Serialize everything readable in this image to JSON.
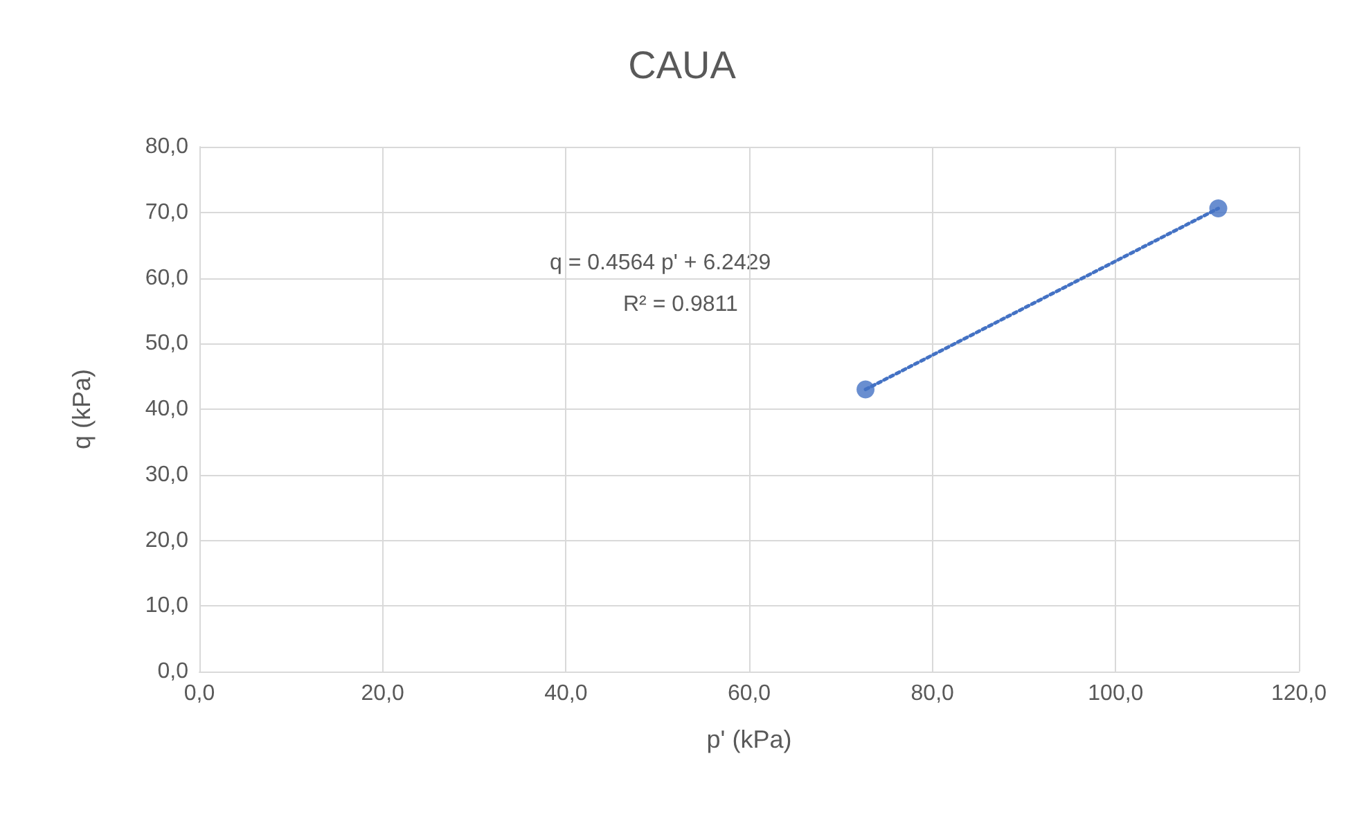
{
  "chart_data": {
    "type": "scatter",
    "title": "CAUA",
    "xlabel": "p' (kPa)",
    "ylabel": "q (kPa)",
    "annotations": [
      "q = 0.4564 p' + 6.2429",
      "R² = 0.9811"
    ],
    "x": [
      72.7,
      111.2
    ],
    "series": [
      {
        "color": "#4472c4",
        "values": [
          43.0,
          70.6
        ],
        "marker": "circle"
      },
      {
        "type": "line",
        "color": "#4472c4",
        "values": [
          43.0,
          70.6
        ],
        "marker": "none",
        "line_style": "dotted"
      }
    ],
    "xlim": [
      0,
      120
    ],
    "xticks": [
      {
        "value": 0,
        "label": "0,0"
      },
      {
        "value": 20,
        "label": "20,0"
      },
      {
        "value": 40,
        "label": "40,0"
      },
      {
        "value": 60,
        "label": "60,0"
      },
      {
        "value": 80,
        "label": "80,0"
      },
      {
        "value": 100,
        "label": "100,0"
      },
      {
        "value": 120,
        "label": "120,0"
      }
    ],
    "ylim": [
      0,
      80
    ],
    "yticks": [
      {
        "value": 0,
        "label": "0,0"
      },
      {
        "value": 10,
        "label": "10,0"
      },
      {
        "value": 20,
        "label": "20,0"
      },
      {
        "value": 30,
        "label": "30,0"
      },
      {
        "value": 40,
        "label": "40,0"
      },
      {
        "value": 50,
        "label": "50,0"
      },
      {
        "value": 60,
        "label": "60,0"
      },
      {
        "value": 70,
        "label": "70,0"
      },
      {
        "value": 80,
        "label": "80,0"
      }
    ],
    "grid": true
  }
}
